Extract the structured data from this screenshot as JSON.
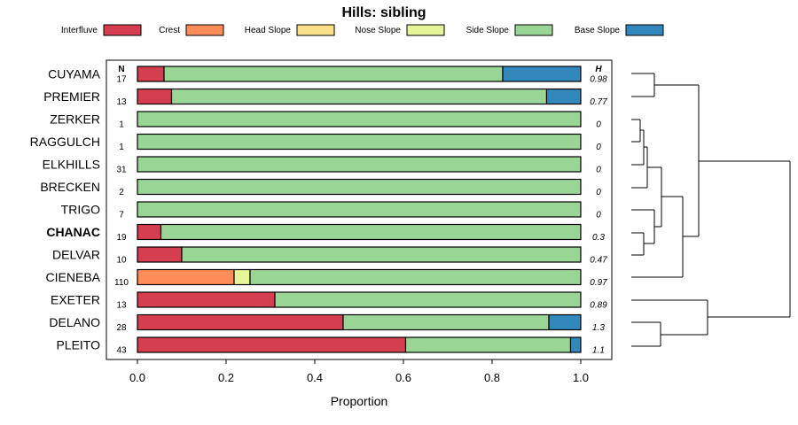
{
  "chart_data": {
    "type": "bar",
    "stacked": true,
    "orientation": "horizontal",
    "title": "Hills: sibling",
    "xlabel": "Proportion",
    "xlim": [
      0,
      1
    ],
    "x_ticks": [
      "0.0",
      "0.2",
      "0.4",
      "0.6",
      "0.8",
      "1.0"
    ],
    "n_header": "N",
    "h_header": "H",
    "legend": [
      {
        "name": "Interfluve",
        "color": "#D53E4F"
      },
      {
        "name": "Crest",
        "color": "#FC8D59"
      },
      {
        "name": "Head Slope",
        "color": "#FEE08B"
      },
      {
        "name": "Nose Slope",
        "color": "#E6F598"
      },
      {
        "name": "Side Slope",
        "color": "#99D594"
      },
      {
        "name": "Base Slope",
        "color": "#3288BD"
      }
    ],
    "categories": [
      "CUYAMA",
      "PREMIER",
      "ZERKER",
      "RAGGULCH",
      "ELKHILLS",
      "BRECKEN",
      "TRIGO",
      "CHANAC",
      "DELVAR",
      "CIENEBA",
      "EXETER",
      "DELANO",
      "PLEITO"
    ],
    "highlight": "CHANAC",
    "n": [
      "17",
      "13",
      "1",
      "1",
      "31",
      "2",
      "7",
      "19",
      "10",
      "110",
      "13",
      "28",
      "43"
    ],
    "h": [
      "0.98",
      "0.77",
      "0",
      "0",
      "0",
      "0",
      "0",
      "0.3",
      "0.47",
      "0.97",
      "0.89",
      "1.3",
      "1.1"
    ],
    "series": [
      {
        "name": "Interfluve",
        "values": [
          0.06,
          0.077,
          0,
          0,
          0,
          0,
          0,
          0.053,
          0.1,
          0,
          0.31,
          0.464,
          0.605
        ]
      },
      {
        "name": "Crest",
        "values": [
          0,
          0,
          0,
          0,
          0,
          0,
          0,
          0,
          0,
          0.218,
          0,
          0,
          0
        ]
      },
      {
        "name": "Head Slope",
        "values": [
          0,
          0,
          0,
          0,
          0,
          0,
          0,
          0,
          0,
          0,
          0,
          0,
          0
        ]
      },
      {
        "name": "Nose Slope",
        "values": [
          0,
          0,
          0,
          0,
          0,
          0,
          0,
          0,
          0,
          0.036,
          0,
          0,
          0
        ]
      },
      {
        "name": "Side Slope",
        "values": [
          0.764,
          0.846,
          1,
          1,
          1,
          1,
          1,
          0.947,
          0.9,
          0.746,
          0.69,
          0.464,
          0.372
        ]
      },
      {
        "name": "Base Slope",
        "values": [
          0.176,
          0.077,
          0,
          0,
          0,
          0,
          0,
          0,
          0,
          0,
          0,
          0.072,
          0.023
        ]
      }
    ]
  }
}
